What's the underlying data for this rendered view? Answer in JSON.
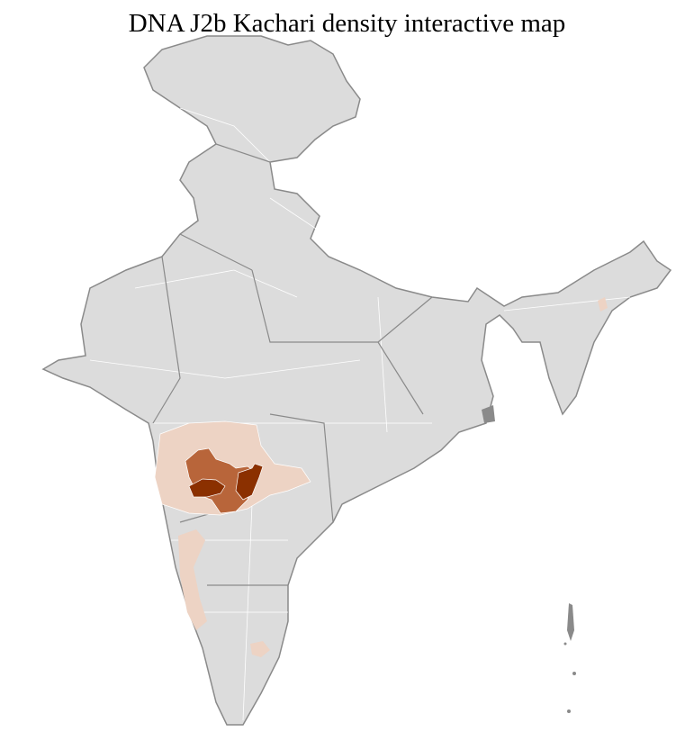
{
  "title": "DNA J2b Kachari density interactive map",
  "colors": {
    "background": "#ffffff",
    "no_data": "#dcdcdc",
    "district_border": "#ffffff",
    "state_border": "#8a8a8a",
    "low_density": "#edd3c4",
    "medium_density": "#b8653a",
    "high_density": "#8b3000"
  }
}
